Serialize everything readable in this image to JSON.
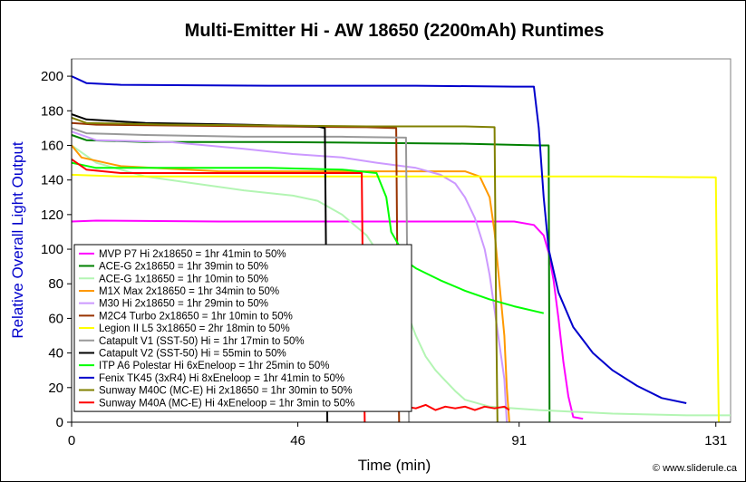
{
  "chart_data": {
    "type": "line",
    "title": "Multi-Emitter Hi - AW 18650 (2200mAh) Runtimes",
    "xlabel": "Time (min)",
    "ylabel": "Relative Overall Light Output",
    "xlim": [
      0,
      134
    ],
    "ylim": [
      0,
      210
    ],
    "x_ticks": [
      0,
      46,
      91,
      131
    ],
    "y_ticks": [
      0,
      20,
      40,
      60,
      80,
      100,
      120,
      140,
      160,
      180,
      200
    ],
    "legend_position": "lower-left",
    "credit": "© www.sliderule.ca",
    "series": [
      {
        "name": "MVP P7 Hi 2x18650 = 1hr 41min to 50%",
        "color": "#ff00ff",
        "points": [
          [
            0,
            116
          ],
          [
            5,
            116.5
          ],
          [
            30,
            116
          ],
          [
            60,
            116
          ],
          [
            90,
            116
          ],
          [
            94,
            114
          ],
          [
            96,
            108
          ],
          [
            97,
            98
          ],
          [
            98,
            82
          ],
          [
            99,
            60
          ],
          [
            100,
            35
          ],
          [
            101,
            15
          ],
          [
            102,
            3
          ],
          [
            104,
            2
          ]
        ]
      },
      {
        "name": "ACE-G 2x18650 = 1hr 39min to 50%",
        "color": "#008000",
        "points": [
          [
            0,
            166
          ],
          [
            3,
            163
          ],
          [
            15,
            162
          ],
          [
            40,
            162
          ],
          [
            60,
            161.5
          ],
          [
            80,
            161
          ],
          [
            95,
            160
          ],
          [
            97,
            160
          ],
          [
            97.2,
            0
          ]
        ]
      },
      {
        "name": "ACE-G 1x18650 = 1hr 10min to 50%",
        "color": "#b3f5b3",
        "points": [
          [
            0,
            160
          ],
          [
            5,
            150
          ],
          [
            15,
            142
          ],
          [
            25,
            138
          ],
          [
            35,
            134
          ],
          [
            45,
            131
          ],
          [
            50,
            128
          ],
          [
            55,
            120
          ],
          [
            60,
            108
          ],
          [
            63,
            95
          ],
          [
            66,
            80
          ],
          [
            68,
            65
          ],
          [
            70,
            50
          ],
          [
            72,
            38
          ],
          [
            74,
            30
          ],
          [
            76,
            24
          ],
          [
            78,
            18
          ],
          [
            80,
            13
          ],
          [
            85,
            9
          ],
          [
            95,
            7
          ],
          [
            110,
            5
          ],
          [
            125,
            4
          ],
          [
            134,
            4
          ]
        ]
      },
      {
        "name": "M1X Max 2x18650 = 1hr 34min to 50%",
        "color": "#ff9900",
        "points": [
          [
            0,
            160
          ],
          [
            2,
            153
          ],
          [
            10,
            148
          ],
          [
            30,
            145
          ],
          [
            60,
            145
          ],
          [
            75,
            145
          ],
          [
            80,
            145
          ],
          [
            83,
            142
          ],
          [
            85,
            130
          ],
          [
            86,
            110
          ],
          [
            87,
            80
          ],
          [
            88,
            50
          ],
          [
            88.5,
            20
          ],
          [
            89,
            0
          ]
        ]
      },
      {
        "name": "M30 Hi 2x18650 = 1hr 29min to 50%",
        "color": "#cc99ff",
        "points": [
          [
            0,
            168
          ],
          [
            5,
            163
          ],
          [
            20,
            162
          ],
          [
            35,
            158
          ],
          [
            45,
            155
          ],
          [
            55,
            153
          ],
          [
            62,
            150
          ],
          [
            70,
            147
          ],
          [
            75,
            143
          ],
          [
            78,
            138
          ],
          [
            80,
            130
          ],
          [
            82,
            118
          ],
          [
            84,
            100
          ],
          [
            85,
            85
          ],
          [
            86,
            65
          ],
          [
            87,
            45
          ],
          [
            88,
            25
          ],
          [
            88.5,
            0
          ]
        ]
      },
      {
        "name": "M2C4 Turbo 2x18650 = 1hr 10min to 50%",
        "color": "#993300",
        "points": [
          [
            0,
            173
          ],
          [
            5,
            172
          ],
          [
            20,
            171.5
          ],
          [
            40,
            171
          ],
          [
            60,
            170.5
          ],
          [
            66,
            170
          ],
          [
            66.3,
            70
          ],
          [
            66.6,
            0
          ]
        ]
      },
      {
        "name": "Legion II L5 3x18650 = 2hr 18min to 50%",
        "color": "#ffff00",
        "points": [
          [
            0,
            143
          ],
          [
            10,
            142
          ],
          [
            40,
            142
          ],
          [
            80,
            142
          ],
          [
            110,
            142
          ],
          [
            131,
            141.5
          ],
          [
            131.3,
            60
          ],
          [
            131.6,
            0
          ]
        ]
      },
      {
        "name": "Catapult V1 (SST-50) Hi = 1hr 17min to 50%",
        "color": "#999999",
        "points": [
          [
            0,
            170
          ],
          [
            3,
            167
          ],
          [
            15,
            166
          ],
          [
            35,
            165
          ],
          [
            55,
            165
          ],
          [
            68,
            164.5
          ],
          [
            68.3,
            70
          ],
          [
            68.6,
            0
          ]
        ]
      },
      {
        "name": "Catapult V2 (SST-50) Hi = 55min to 50%",
        "color": "#000000",
        "points": [
          [
            0,
            178
          ],
          [
            3,
            175
          ],
          [
            15,
            173
          ],
          [
            35,
            172
          ],
          [
            50,
            171
          ],
          [
            51.5,
            170
          ],
          [
            51.8,
            80
          ],
          [
            52,
            0
          ]
        ]
      },
      {
        "name": "ITP A6 Polestar Hi 6xEneloop = 1hr 25min to 50%",
        "color": "#00ff00",
        "points": [
          [
            0,
            150
          ],
          [
            5,
            147
          ],
          [
            20,
            147
          ],
          [
            40,
            147
          ],
          [
            55,
            146
          ],
          [
            62,
            144
          ],
          [
            64,
            130
          ],
          [
            65,
            110
          ],
          [
            67,
            100
          ],
          [
            68,
            93
          ],
          [
            70,
            89
          ],
          [
            75,
            82
          ],
          [
            80,
            76
          ],
          [
            85,
            71
          ],
          [
            90,
            67
          ],
          [
            96,
            63
          ]
        ]
      },
      {
        "name": "Fenix TK45 (3xR4) Hi 8xEneloop = 1hr 41min to 50%",
        "color": "#0000cc",
        "points": [
          [
            0,
            200
          ],
          [
            3,
            196
          ],
          [
            10,
            195
          ],
          [
            40,
            194.5
          ],
          [
            70,
            194.5
          ],
          [
            90,
            194
          ],
          [
            94,
            194
          ],
          [
            95,
            170
          ],
          [
            96,
            130
          ],
          [
            97,
            100
          ],
          [
            99,
            75
          ],
          [
            102,
            55
          ],
          [
            106,
            40
          ],
          [
            110,
            30
          ],
          [
            115,
            21
          ],
          [
            120,
            14
          ],
          [
            125,
            11
          ]
        ]
      },
      {
        "name": "Sunway M40C (MC-E) Hi 2x18650 = 1hr 30min to 50%",
        "color": "#808000",
        "points": [
          [
            0,
            176
          ],
          [
            3,
            173
          ],
          [
            20,
            172
          ],
          [
            40,
            171.5
          ],
          [
            60,
            171
          ],
          [
            80,
            171
          ],
          [
            86,
            170.5
          ],
          [
            86.3,
            70
          ],
          [
            86.6,
            0
          ]
        ]
      },
      {
        "name": "Sunway M40A (MC-E) Hi 4xEneloop = 1hr 3min to 50%",
        "color": "#ff0000",
        "points": [
          [
            0,
            152
          ],
          [
            3,
            146
          ],
          [
            10,
            144
          ],
          [
            30,
            144
          ],
          [
            50,
            144
          ],
          [
            59,
            144
          ],
          [
            59.3,
            60
          ],
          [
            59.6,
            0
          ]
        ]
      },
      {
        "name": "",
        "color": "#ff0000",
        "dash": true,
        "points": [
          [
            68,
            9
          ],
          [
            70,
            8
          ],
          [
            72,
            10
          ],
          [
            74,
            7
          ],
          [
            76,
            9
          ],
          [
            78,
            8
          ],
          [
            80,
            9
          ],
          [
            82,
            7
          ],
          [
            84,
            9
          ],
          [
            86,
            8
          ],
          [
            88,
            9
          ],
          [
            89,
            7
          ]
        ]
      }
    ]
  }
}
